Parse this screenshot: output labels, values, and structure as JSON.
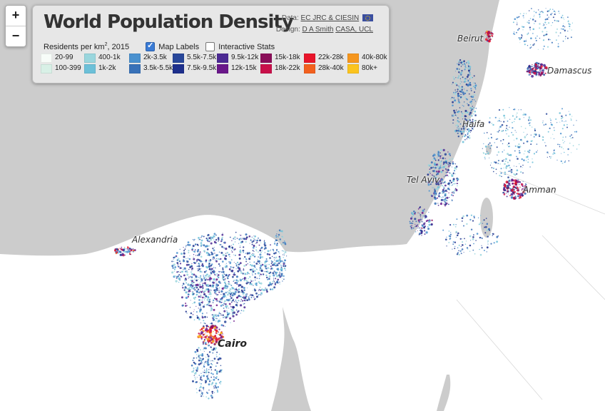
{
  "title": "World Population Density",
  "credits": {
    "data_label": "Data:",
    "data_link": "EC JRC & CIESIN",
    "design_label": "Design:",
    "design_link1": "D A Smith",
    "design_link2": "CASA, UCL"
  },
  "controls": {
    "units_prefix": "Residents per km",
    "units_sup": "2",
    "units_suffix": ", 2015",
    "map_labels": "Map Labels",
    "map_labels_checked": true,
    "interactive_stats": "Interactive Stats",
    "interactive_stats_checked": false
  },
  "zoom": {
    "in": "+",
    "out": "−"
  },
  "legend": [
    {
      "label": "20-99",
      "color": "#f7fcf8"
    },
    {
      "label": "100-399",
      "color": "#d8f0e6"
    },
    {
      "label": "400-1k",
      "color": "#9ad6dd"
    },
    {
      "label": "1k-2k",
      "color": "#6cc0d8"
    },
    {
      "label": "2k-3.5k",
      "color": "#4a91cf"
    },
    {
      "label": "3.5k-5.5k",
      "color": "#3871b8"
    },
    {
      "label": "5.5k-7.5k",
      "color": "#28479a"
    },
    {
      "label": "7.5k-9.5k",
      "color": "#1d2f8c"
    },
    {
      "label": "9.5k-12k",
      "color": "#4c2a93"
    },
    {
      "label": "12k-15k",
      "color": "#6a178a"
    },
    {
      "label": "15k-18k",
      "color": "#8a0e59"
    },
    {
      "label": "18k-22k",
      "color": "#c8104a"
    },
    {
      "label": "22k-28k",
      "color": "#e8152a"
    },
    {
      "label": "28k-40k",
      "color": "#f2601e"
    },
    {
      "label": "40k-80k",
      "color": "#f5961e"
    },
    {
      "label": "80k+",
      "color": "#fbc41e"
    }
  ],
  "cities": [
    "Beirut",
    "Damascus",
    "Haifa",
    "Tel Aviv",
    "Amman",
    "Alexandria",
    "Cairo"
  ],
  "colors": {
    "sea": "#cccccc",
    "land": "#ffffff"
  }
}
